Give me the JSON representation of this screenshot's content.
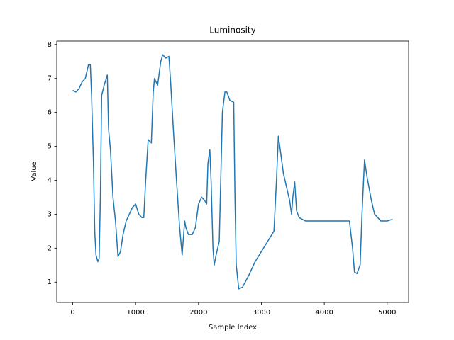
{
  "chart_data": {
    "type": "line",
    "title": "Luminosity",
    "x_label": "Sample Index",
    "y_label": "Value",
    "color": "#1f77b4",
    "grid": false,
    "xlim": [
      -254,
      5341
    ],
    "ylim": [
      0.4,
      8.1
    ],
    "xticks": [
      0,
      1000,
      2000,
      3000,
      4000,
      5000
    ],
    "yticks": [
      1,
      2,
      3,
      4,
      5,
      6,
      7,
      8
    ],
    "x": [
      0,
      50,
      100,
      150,
      200,
      250,
      280,
      300,
      330,
      350,
      370,
      400,
      420,
      440,
      460,
      500,
      550,
      570,
      600,
      640,
      680,
      720,
      760,
      800,
      850,
      900,
      950,
      1000,
      1050,
      1100,
      1130,
      1160,
      1200,
      1250,
      1280,
      1300,
      1350,
      1400,
      1430,
      1480,
      1530,
      1560,
      1600,
      1650,
      1700,
      1740,
      1780,
      1800,
      1840,
      1900,
      1950,
      2000,
      2050,
      2100,
      2130,
      2150,
      2180,
      2200,
      2230,
      2250,
      2280,
      2330,
      2380,
      2420,
      2450,
      2500,
      2560,
      2580,
      2600,
      2640,
      2700,
      2800,
      2900,
      3000,
      3100,
      3150,
      3200,
      3240,
      3270,
      3300,
      3350,
      3400,
      3450,
      3480,
      3500,
      3530,
      3560,
      3600,
      3700,
      3800,
      3900,
      4000,
      4100,
      4200,
      4300,
      4400,
      4450,
      4480,
      4520,
      4570,
      4600,
      4640,
      4680,
      4750,
      4800,
      4850,
      4900,
      5000,
      5087
    ],
    "values": [
      6.65,
      6.6,
      6.7,
      6.9,
      7.0,
      7.4,
      7.4,
      6.5,
      4.5,
      2.5,
      1.8,
      1.6,
      1.7,
      3.5,
      6.5,
      6.8,
      7.1,
      5.5,
      4.9,
      3.5,
      2.8,
      1.75,
      1.9,
      2.4,
      2.8,
      3.0,
      3.2,
      3.3,
      3.0,
      2.9,
      2.9,
      4.0,
      5.2,
      5.1,
      6.6,
      7.0,
      6.8,
      7.5,
      7.7,
      7.6,
      7.65,
      6.8,
      5.5,
      4.0,
      2.6,
      1.8,
      2.8,
      2.6,
      2.4,
      2.4,
      2.6,
      3.3,
      3.5,
      3.4,
      3.3,
      4.5,
      4.9,
      4.0,
      2.0,
      1.5,
      1.8,
      2.2,
      6.0,
      6.6,
      6.6,
      6.35,
      6.3,
      3.5,
      1.5,
      0.8,
      0.85,
      1.2,
      1.6,
      1.9,
      2.2,
      2.35,
      2.5,
      4.0,
      5.3,
      4.9,
      4.2,
      3.8,
      3.4,
      3.0,
      3.5,
      3.95,
      3.1,
      2.9,
      2.8,
      2.8,
      2.8,
      2.8,
      2.8,
      2.8,
      2.8,
      2.8,
      2.0,
      1.3,
      1.25,
      1.5,
      3.0,
      4.6,
      4.1,
      3.4,
      3.0,
      2.9,
      2.8,
      2.8,
      2.85
    ]
  }
}
